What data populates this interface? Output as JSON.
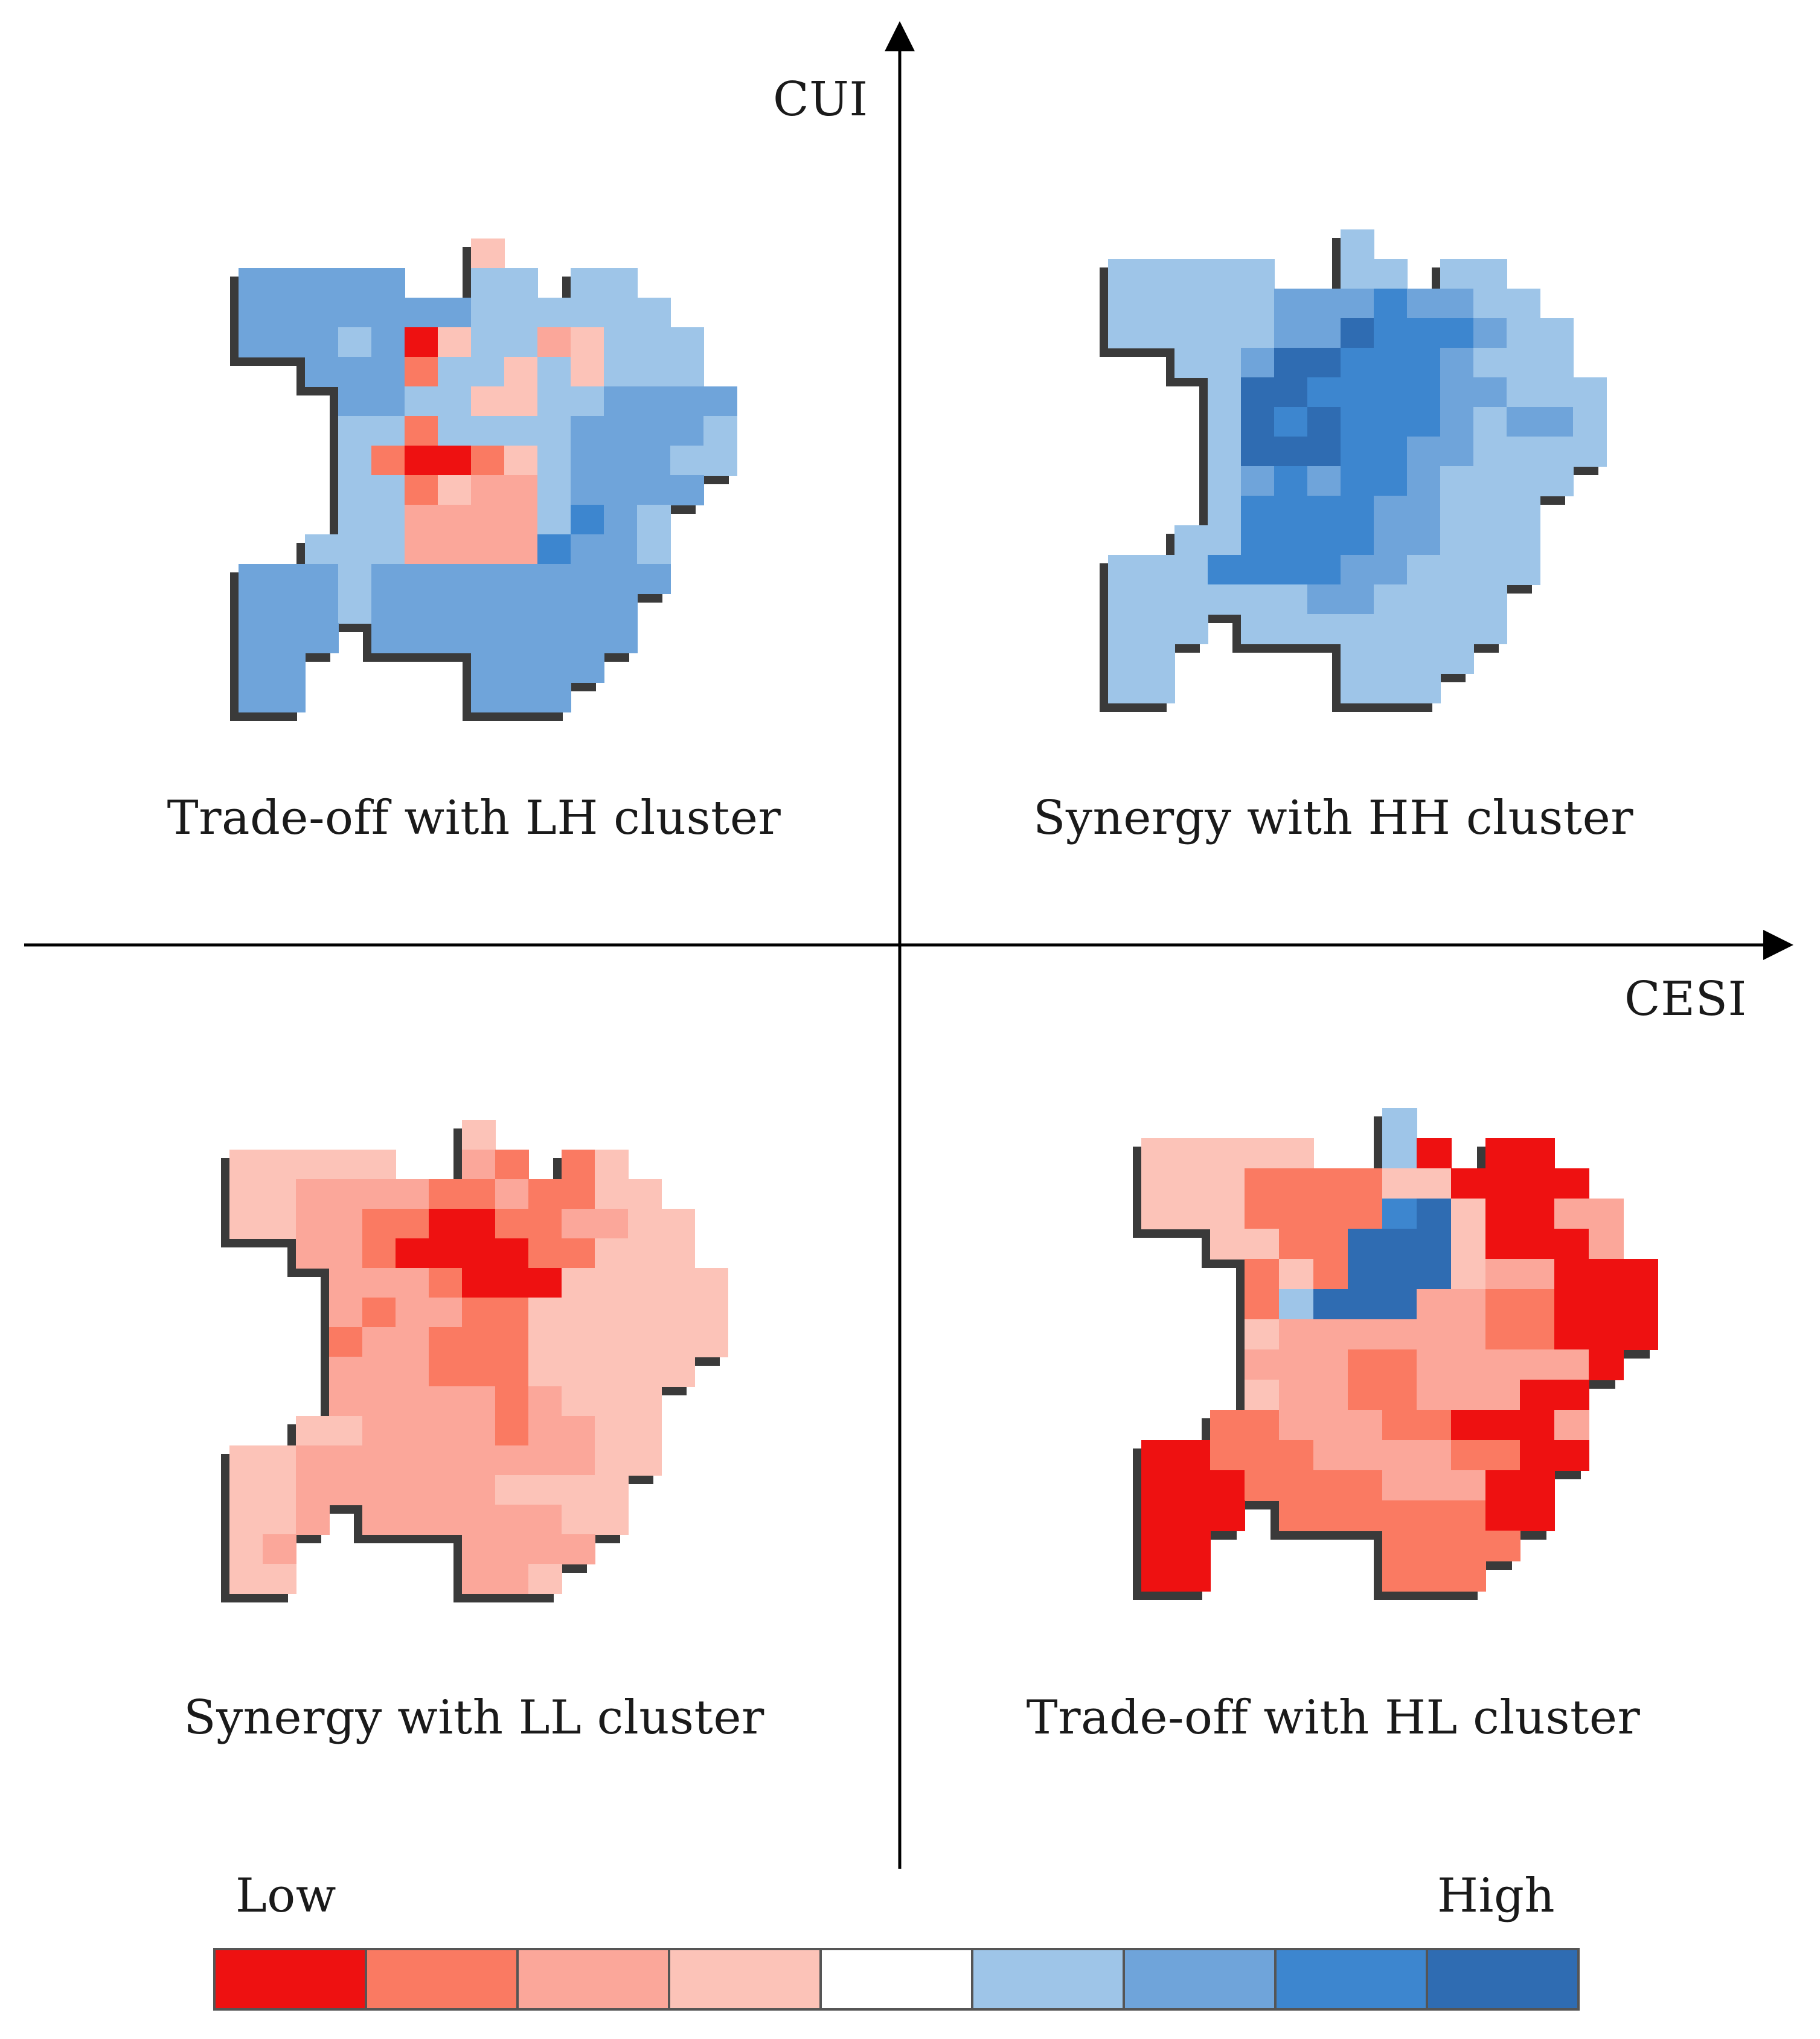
{
  "axes": {
    "y_label": "CUI",
    "x_label": "CESI"
  },
  "quadrants": {
    "top_left": "Trade-off with LH cluster",
    "top_right": "Synergy with HH cluster",
    "bottom_left": "Synergy with LL cluster",
    "bottom_right": "Trade-off with HL cluster"
  },
  "legend": {
    "low_label": "Low",
    "high_label": "High",
    "colors": [
      "#ee1111",
      "#fa7a62",
      "#fba79a",
      "#fcc3b8",
      "#ffffff",
      "#9ec5e8",
      "#6fa4da",
      "#3d86cf",
      "#2f6cb2"
    ]
  }
}
